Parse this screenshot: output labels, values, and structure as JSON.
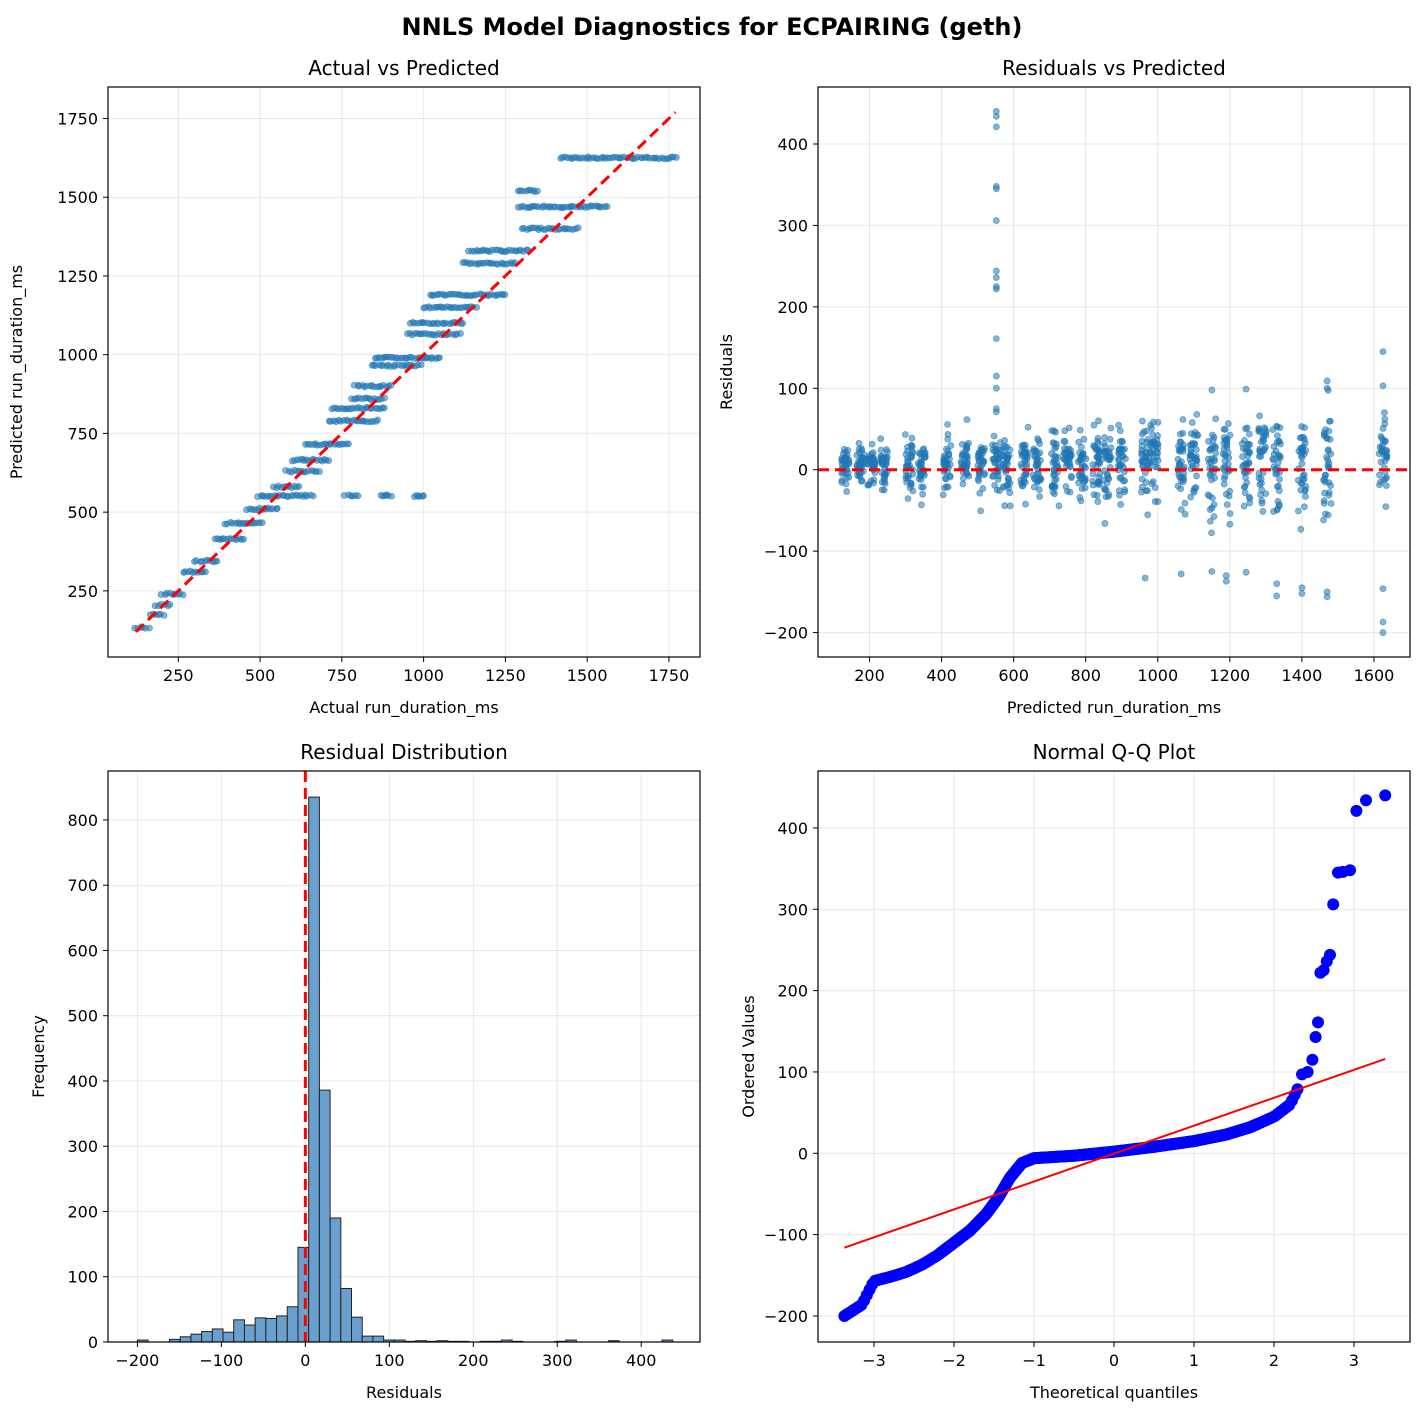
{
  "figure": {
    "suptitle": "NNLS Model Diagnostics for ECPAIRING (geth)"
  },
  "chart_data": [
    {
      "id": "p1",
      "type": "scatter",
      "title": "Actual vs Predicted",
      "xlabel": "Actual run_duration_ms",
      "ylabel": "Predicted run_duration_ms",
      "xlim": [
        35,
        1845
      ],
      "ylim": [
        40,
        1850
      ],
      "xticks": [
        250,
        500,
        750,
        1000,
        1250,
        1500,
        1750
      ],
      "yticks": [
        250,
        500,
        750,
        1000,
        1250,
        1500,
        1750
      ],
      "grid": true,
      "ref_line": {
        "x": [
          120,
          1770
        ],
        "y": [
          120,
          1770
        ],
        "color": "#ff0000",
        "style": "dashed"
      },
      "point_color": "#1f77b4",
      "levels": [
        {
          "y": 133,
          "x_min": 118,
          "x_max": 160
        },
        {
          "y": 175,
          "x_min": 165,
          "x_max": 205
        },
        {
          "y": 205,
          "x_min": 180,
          "x_max": 225
        },
        {
          "y": 240,
          "x_min": 200,
          "x_max": 265
        },
        {
          "y": 310,
          "x_min": 265,
          "x_max": 335
        },
        {
          "y": 345,
          "x_min": 300,
          "x_max": 370
        },
        {
          "y": 415,
          "x_min": 360,
          "x_max": 450
        },
        {
          "y": 465,
          "x_min": 395,
          "x_max": 505
        },
        {
          "y": 510,
          "x_min": 460,
          "x_max": 555
        },
        {
          "y": 552,
          "x_min": 495,
          "x_max": 660
        },
        {
          "y": 552,
          "x_min": 760,
          "x_max": 800
        },
        {
          "y": 552,
          "x_min": 870,
          "x_max": 900
        },
        {
          "y": 552,
          "x_min": 970,
          "x_max": 1000
        },
        {
          "y": 580,
          "x_min": 540,
          "x_max": 620
        },
        {
          "y": 630,
          "x_min": 580,
          "x_max": 680
        },
        {
          "y": 665,
          "x_min": 600,
          "x_max": 710
        },
        {
          "y": 715,
          "x_min": 640,
          "x_max": 770
        },
        {
          "y": 790,
          "x_min": 710,
          "x_max": 860
        },
        {
          "y": 830,
          "x_min": 720,
          "x_max": 880
        },
        {
          "y": 860,
          "x_min": 780,
          "x_max": 880
        },
        {
          "y": 900,
          "x_min": 790,
          "x_max": 900
        },
        {
          "y": 965,
          "x_min": 840,
          "x_max": 990
        },
        {
          "y": 990,
          "x_min": 850,
          "x_max": 1050
        },
        {
          "y": 1065,
          "x_min": 950,
          "x_max": 1110
        },
        {
          "y": 1100,
          "x_min": 960,
          "x_max": 1120
        },
        {
          "y": 1150,
          "x_min": 1000,
          "x_max": 1160
        },
        {
          "y": 1190,
          "x_min": 1020,
          "x_max": 1250
        },
        {
          "y": 1290,
          "x_min": 1120,
          "x_max": 1280
        },
        {
          "y": 1330,
          "x_min": 1140,
          "x_max": 1320
        },
        {
          "y": 1400,
          "x_min": 1300,
          "x_max": 1470
        },
        {
          "y": 1470,
          "x_min": 1290,
          "x_max": 1560
        },
        {
          "y": 1520,
          "x_min": 1290,
          "x_max": 1350
        },
        {
          "y": 1625,
          "x_min": 1420,
          "x_max": 1770
        }
      ]
    },
    {
      "id": "p2",
      "type": "scatter",
      "title": "Residuals vs Predicted",
      "xlabel": "Predicted run_duration_ms",
      "ylabel": "Residuals",
      "xlim": [
        57,
        1700
      ],
      "ylim": [
        -230,
        470
      ],
      "xticks": [
        200,
        400,
        600,
        800,
        1000,
        1200,
        1400,
        1600
      ],
      "yticks": [
        -200,
        -100,
        0,
        100,
        200,
        300,
        400
      ],
      "grid": true,
      "zero_line": {
        "y": 0,
        "color": "#ff0000",
        "style": "dashed"
      },
      "point_color": "#1f77b4",
      "columns": [
        133,
        175,
        205,
        240,
        310,
        345,
        415,
        465,
        510,
        552,
        580,
        630,
        665,
        715,
        750,
        790,
        830,
        860,
        900,
        965,
        990,
        1065,
        1100,
        1150,
        1190,
        1245,
        1290,
        1330,
        1400,
        1470,
        1625
      ],
      "outliers": [
        {
          "x": 552,
          "y": 440
        },
        {
          "x": 552,
          "y": 434
        },
        {
          "x": 552,
          "y": 421
        },
        {
          "x": 552,
          "y": 348
        },
        {
          "x": 552,
          "y": 345
        },
        {
          "x": 552,
          "y": 306
        },
        {
          "x": 552,
          "y": 244
        },
        {
          "x": 552,
          "y": 236
        },
        {
          "x": 552,
          "y": 225
        },
        {
          "x": 552,
          "y": 222
        },
        {
          "x": 552,
          "y": 161
        },
        {
          "x": 552,
          "y": 115
        },
        {
          "x": 552,
          "y": 100
        },
        {
          "x": 552,
          "y": 75
        },
        {
          "x": 552,
          "y": 71
        },
        {
          "x": 1625,
          "y": 145
        },
        {
          "x": 1625,
          "y": 103
        },
        {
          "x": 1470,
          "y": 109
        },
        {
          "x": 1470,
          "y": 100
        },
        {
          "x": 1245,
          "y": 99
        },
        {
          "x": 1150,
          "y": 98
        },
        {
          "x": 1625,
          "y": -187
        },
        {
          "x": 1625,
          "y": -200
        },
        {
          "x": 1625,
          "y": -146
        },
        {
          "x": 1470,
          "y": -150
        },
        {
          "x": 1470,
          "y": -156
        },
        {
          "x": 1400,
          "y": -145
        },
        {
          "x": 1400,
          "y": -152
        },
        {
          "x": 1330,
          "y": -155
        },
        {
          "x": 1330,
          "y": -140
        },
        {
          "x": 1190,
          "y": -137
        },
        {
          "x": 1190,
          "y": -130
        },
        {
          "x": 965,
          "y": -133
        },
        {
          "x": 1065,
          "y": -128
        },
        {
          "x": 1245,
          "y": -126
        },
        {
          "x": 1150,
          "y": -125
        }
      ]
    },
    {
      "id": "p3",
      "type": "bar",
      "title": "Residual Distribution",
      "xlabel": "Residuals",
      "ylabel": "Frequency",
      "xlim": [
        -235,
        470
      ],
      "ylim": [
        0,
        875
      ],
      "xticks": [
        -200,
        -100,
        0,
        100,
        200,
        300,
        400
      ],
      "yticks": [
        0,
        100,
        200,
        300,
        400,
        500,
        600,
        700,
        800
      ],
      "grid": true,
      "bin_start": -200,
      "bin_width": 12.75,
      "counts": [
        3,
        0,
        0,
        4,
        8,
        12,
        16,
        20,
        15,
        34,
        26,
        37,
        36,
        40,
        54,
        145,
        835,
        386,
        190,
        82,
        38,
        9,
        9,
        3,
        3,
        1,
        2,
        1,
        2,
        1,
        1,
        0,
        1,
        1,
        3,
        1,
        0,
        0,
        0,
        1,
        3,
        0,
        0,
        0,
        2,
        0,
        0,
        0,
        0,
        3,
        0
      ],
      "bar_color": "#6aa0cd",
      "edge_color": "#222222",
      "zero_line": {
        "x": 0,
        "color": "#ff0000",
        "style": "dashed"
      }
    },
    {
      "id": "p4",
      "type": "scatter",
      "title": "Normal Q-Q Plot",
      "xlabel": "Theoretical quantiles",
      "ylabel": "Ordered Values",
      "xlim": [
        -3.7,
        3.7
      ],
      "ylim": [
        -232,
        470
      ],
      "xticks": [
        -3,
        -2,
        -1,
        0,
        1,
        2,
        3
      ],
      "yticks": [
        -200,
        -100,
        0,
        100,
        200,
        300,
        400
      ],
      "grid": true,
      "point_color": "#0000ff",
      "fit_line": {
        "x": [
          -3.37,
          3.39
        ],
        "y": [
          -116,
          116
        ],
        "color": "#ff0000"
      },
      "curve": [
        {
          "x": -3.37,
          "y": -200
        },
        {
          "x": -3.15,
          "y": -186
        },
        {
          "x": -3.0,
          "y": -157
        },
        {
          "x": -2.8,
          "y": -152
        },
        {
          "x": -2.6,
          "y": -146
        },
        {
          "x": -2.4,
          "y": -137
        },
        {
          "x": -2.2,
          "y": -125
        },
        {
          "x": -2.0,
          "y": -110
        },
        {
          "x": -1.8,
          "y": -95
        },
        {
          "x": -1.6,
          "y": -75
        },
        {
          "x": -1.45,
          "y": -55
        },
        {
          "x": -1.3,
          "y": -30
        },
        {
          "x": -1.15,
          "y": -12
        },
        {
          "x": -1.0,
          "y": -6
        },
        {
          "x": -0.5,
          "y": -3
        },
        {
          "x": 0.0,
          "y": 2
        },
        {
          "x": 0.5,
          "y": 8
        },
        {
          "x": 1.0,
          "y": 15
        },
        {
          "x": 1.4,
          "y": 23
        },
        {
          "x": 1.7,
          "y": 32
        },
        {
          "x": 2.0,
          "y": 45
        },
        {
          "x": 2.2,
          "y": 60
        },
        {
          "x": 2.3,
          "y": 80
        }
      ],
      "tail": [
        {
          "x": 2.35,
          "y": 97
        },
        {
          "x": 2.42,
          "y": 100
        },
        {
          "x": 2.48,
          "y": 115
        },
        {
          "x": 2.52,
          "y": 143
        },
        {
          "x": 2.55,
          "y": 161
        },
        {
          "x": 2.58,
          "y": 222
        },
        {
          "x": 2.62,
          "y": 225
        },
        {
          "x": 2.66,
          "y": 236
        },
        {
          "x": 2.7,
          "y": 244
        },
        {
          "x": 2.74,
          "y": 306
        },
        {
          "x": 2.8,
          "y": 345
        },
        {
          "x": 2.86,
          "y": 346
        },
        {
          "x": 2.95,
          "y": 348
        },
        {
          "x": 3.03,
          "y": 421
        },
        {
          "x": 3.15,
          "y": 434
        },
        {
          "x": 3.39,
          "y": 440
        }
      ]
    }
  ]
}
